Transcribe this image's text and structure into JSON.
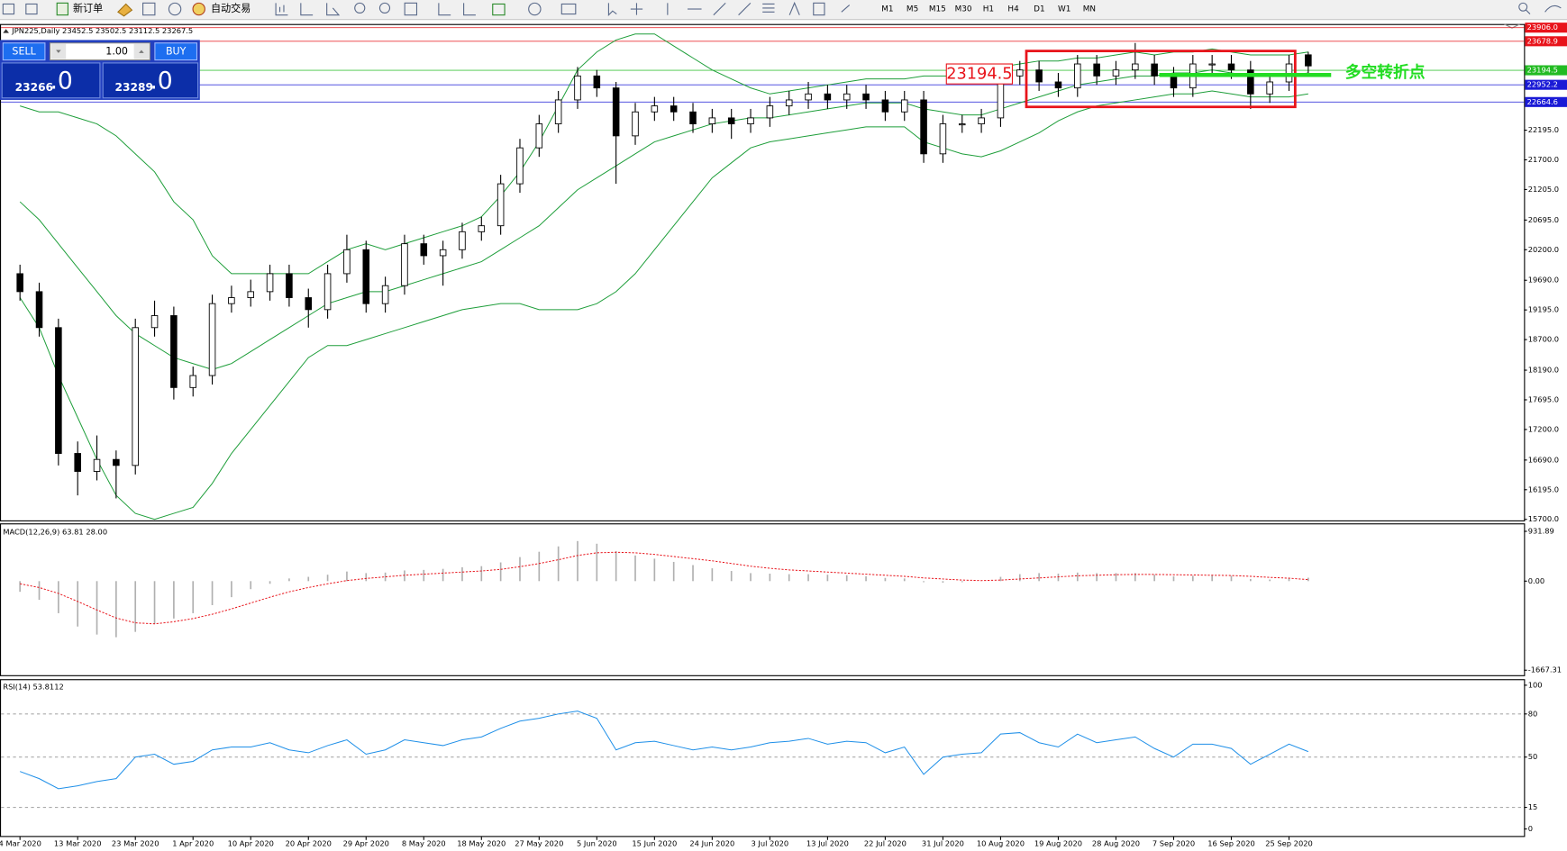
{
  "toolbar": {
    "new_order": "新订单",
    "auto_trading": "自动交易",
    "timeframes": [
      "M1",
      "M5",
      "M15",
      "M30",
      "H1",
      "H4",
      "D1",
      "W1",
      "MN"
    ]
  },
  "trade_panel": {
    "sell": "SELL",
    "lot": "1.00",
    "buy": "BUY",
    "sell_price": "23266",
    "sell_fraction": ".0",
    "buy_price": "23289",
    "buy_fraction": ".0"
  },
  "chart_data": {
    "type": "candlestick",
    "title": "JPN225,Daily  23452.5 23502.5 23112.5 23267.5",
    "dates": [
      "4 Mar 2020",
      null,
      null,
      "13 Mar 2020",
      null,
      null,
      "23 Mar 2020",
      null,
      null,
      "1 Apr 2020",
      null,
      null,
      "10 Apr 2020",
      null,
      null,
      "20 Apr 2020",
      null,
      null,
      "29 Apr 2020",
      null,
      null,
      "8 May 2020",
      null,
      null,
      "18 May 2020",
      null,
      null,
      "27 May 2020",
      null,
      null,
      "5 Jun 2020",
      null,
      null,
      "15 Jun 2020",
      null,
      null,
      "24 Jun 2020",
      null,
      null,
      "3 Jul 2020",
      null,
      null,
      "13 Jul 2020",
      null,
      null,
      "22 Jul 2020",
      null,
      null,
      "31 Jul 2020",
      null,
      null,
      "10 Aug 2020",
      null,
      null,
      "19 Aug 2020",
      null,
      null,
      "28 Aug 2020",
      null,
      null,
      "7 Sep 2020",
      null,
      null,
      "16 Sep 2020",
      null,
      null,
      "25 Sep 2020",
      null
    ],
    "ohlc": [
      [
        19800,
        19950,
        19350,
        19500
      ],
      [
        19500,
        19650,
        18750,
        18900
      ],
      [
        18900,
        19050,
        16600,
        16800
      ],
      [
        16800,
        17000,
        16100,
        16500
      ],
      [
        16500,
        17100,
        16350,
        16700
      ],
      [
        16700,
        16850,
        16050,
        16600
      ],
      [
        16600,
        19050,
        16450,
        18900
      ],
      [
        18900,
        19350,
        18750,
        19100
      ],
      [
        19100,
        19250,
        17700,
        17900
      ],
      [
        17900,
        18250,
        17750,
        18100
      ],
      [
        18100,
        19450,
        17950,
        19300
      ],
      [
        19300,
        19600,
        19150,
        19400
      ],
      [
        19400,
        19700,
        19250,
        19500
      ],
      [
        19500,
        19950,
        19350,
        19800
      ],
      [
        19800,
        19950,
        19250,
        19400
      ],
      [
        19400,
        19550,
        18900,
        19200
      ],
      [
        19200,
        19950,
        19050,
        19800
      ],
      [
        19800,
        20450,
        19650,
        20200
      ],
      [
        20200,
        20350,
        19150,
        19300
      ],
      [
        19300,
        19750,
        19150,
        19600
      ],
      [
        19600,
        20450,
        19450,
        20300
      ],
      [
        20300,
        20450,
        19950,
        20100
      ],
      [
        20100,
        20350,
        19600,
        20200
      ],
      [
        20200,
        20650,
        20050,
        20500
      ],
      [
        20500,
        20750,
        20350,
        20600
      ],
      [
        20600,
        21450,
        20450,
        21300
      ],
      [
        21300,
        22050,
        21150,
        21900
      ],
      [
        21900,
        22450,
        21750,
        22300
      ],
      [
        22300,
        22850,
        22150,
        22700
      ],
      [
        22700,
        23250,
        22550,
        23100
      ],
      [
        23100,
        23200,
        22750,
        22900
      ],
      [
        22900,
        23000,
        21300,
        22100
      ],
      [
        22100,
        22650,
        21950,
        22500
      ],
      [
        22500,
        22750,
        22350,
        22600
      ],
      [
        22600,
        22750,
        22350,
        22500
      ],
      [
        22500,
        22650,
        22150,
        22300
      ],
      [
        22300,
        22550,
        22150,
        22400
      ],
      [
        22400,
        22550,
        22050,
        22300
      ],
      [
        22300,
        22550,
        22150,
        22400
      ],
      [
        22400,
        22750,
        22250,
        22600
      ],
      [
        22600,
        22850,
        22450,
        22700
      ],
      [
        22700,
        23000,
        22550,
        22800
      ],
      [
        22800,
        22950,
        22550,
        22700
      ],
      [
        22700,
        22950,
        22550,
        22800
      ],
      [
        22800,
        22950,
        22550,
        22700
      ],
      [
        22700,
        22850,
        22350,
        22500
      ],
      [
        22500,
        22850,
        22350,
        22700
      ],
      [
        22700,
        22850,
        21650,
        21800
      ],
      [
        21800,
        22450,
        21650,
        22300
      ],
      [
        22300,
        22450,
        22150,
        22300
      ],
      [
        22300,
        22550,
        22150,
        22400
      ],
      [
        22400,
        23250,
        22250,
        23100
      ],
      [
        23100,
        23350,
        22950,
        23200
      ],
      [
        23200,
        23350,
        22850,
        23000
      ],
      [
        23000,
        23150,
        22750,
        22900
      ],
      [
        22900,
        23450,
        22750,
        23300
      ],
      [
        23300,
        23450,
        22950,
        23100
      ],
      [
        23100,
        23350,
        22950,
        23200
      ],
      [
        23200,
        23650,
        23050,
        23300
      ],
      [
        23300,
        23450,
        22950,
        23100
      ],
      [
        23100,
        23250,
        22750,
        22900
      ],
      [
        22900,
        23450,
        22750,
        23300
      ],
      [
        23300,
        23450,
        23150,
        23300
      ],
      [
        23300,
        23450,
        23050,
        23200
      ],
      [
        23200,
        23350,
        22550,
        22800
      ],
      [
        22800,
        23150,
        22650,
        23000
      ],
      [
        23000,
        23450,
        22850,
        23300
      ],
      [
        23452.5,
        23502.5,
        23112.5,
        23267.5
      ]
    ],
    "bollinger": {
      "color": "#1e9e3a",
      "upper": [
        22600,
        22500,
        22500,
        22400,
        22300,
        22100,
        21800,
        21500,
        21000,
        20700,
        20100,
        19800,
        19800,
        19800,
        19800,
        19800,
        20000,
        20200,
        20300,
        20200,
        20300,
        20400,
        20500,
        20600,
        20750,
        21100,
        21500,
        22000,
        22600,
        23200,
        23500,
        23700,
        23800,
        23800,
        23600,
        23400,
        23200,
        23050,
        22900,
        22800,
        22850,
        22900,
        22950,
        23000,
        23050,
        23050,
        23050,
        23100,
        23100,
        23100,
        23150,
        23250,
        23300,
        23350,
        23350,
        23400,
        23400,
        23450,
        23500,
        23450,
        23500,
        23500,
        23550,
        23500,
        23450,
        23450,
        23450,
        23500
      ],
      "middle": [
        21000,
        20700,
        20300,
        19900,
        19500,
        19100,
        18800,
        18600,
        18400,
        18300,
        18200,
        18300,
        18500,
        18700,
        18900,
        19100,
        19300,
        19400,
        19500,
        19500,
        19600,
        19700,
        19800,
        19900,
        20000,
        20200,
        20400,
        20600,
        20900,
        21200,
        21400,
        21600,
        21800,
        22000,
        22100,
        22200,
        22300,
        22350,
        22400,
        22400,
        22450,
        22500,
        22550,
        22600,
        22650,
        22650,
        22650,
        22550,
        22500,
        22450,
        22450,
        22550,
        22650,
        22750,
        22850,
        22950,
        23000,
        23050,
        23100,
        23100,
        23150,
        23150,
        23200,
        23150,
        23100,
        23100,
        23100,
        23150
      ],
      "lower": [
        19400,
        18900,
        18100,
        17400,
        16700,
        16100,
        15800,
        15700,
        15800,
        15900,
        16300,
        16800,
        17200,
        17600,
        18000,
        18400,
        18600,
        18600,
        18700,
        18800,
        18900,
        19000,
        19100,
        19200,
        19250,
        19300,
        19300,
        19200,
        19200,
        19200,
        19300,
        19500,
        19800,
        20200,
        20600,
        21000,
        21400,
        21650,
        21900,
        22000,
        22050,
        22100,
        22150,
        22200,
        22250,
        22250,
        22250,
        22000,
        21900,
        21800,
        21750,
        21850,
        22000,
        22150,
        22350,
        22500,
        22600,
        22650,
        22700,
        22750,
        22800,
        22800,
        22850,
        22800,
        22750,
        22750,
        22750,
        22800
      ]
    },
    "ylim": [
      15683,
      23950
    ],
    "yticks": [
      {
        "value": 15700,
        "label": "15700.0"
      },
      {
        "value": 16195,
        "label": "16195.0"
      },
      {
        "value": 16690,
        "label": "16690.0"
      },
      {
        "value": 17200,
        "label": "17200.0"
      },
      {
        "value": 17695,
        "label": "17695.0"
      },
      {
        "value": 18190,
        "label": "18190.0"
      },
      {
        "value": 18700,
        "label": "18700.0"
      },
      {
        "value": 19195,
        "label": "19195.0"
      },
      {
        "value": 19690,
        "label": "19690.0"
      },
      {
        "value": 20200,
        "label": "20200.0"
      },
      {
        "value": 20695,
        "label": "20695.0"
      },
      {
        "value": 21205,
        "label": "21205.0"
      },
      {
        "value": 21700,
        "label": "21700.0"
      },
      {
        "value": 22195,
        "label": "22195.0"
      }
    ],
    "levels": [
      {
        "value": 23906,
        "label": "23906.0",
        "color": "#e8141b"
      },
      {
        "value": 23678.9,
        "label": "23678.9",
        "color": "#e8141b"
      },
      {
        "value": 23194.5,
        "label": "23194.5",
        "color": "#22bb22"
      },
      {
        "value": 22952.2,
        "label": "22952.2",
        "color": "#1a1ad6"
      },
      {
        "value": 22664.6,
        "label": "22664.6",
        "color": "#1a1ad6"
      }
    ],
    "annotations": {
      "price_tag": "23194.5",
      "turning_point": "多空转折点"
    },
    "macd": {
      "title": "MACD(12,26,9) 63.81 28.00",
      "histogram": [
        -200,
        -350,
        -600,
        -850,
        -1000,
        -1050,
        -950,
        -800,
        -700,
        -600,
        -450,
        -300,
        -150,
        -50,
        50,
        80,
        120,
        180,
        150,
        160,
        200,
        210,
        230,
        260,
        280,
        350,
        450,
        550,
        650,
        750,
        700,
        560,
        480,
        420,
        360,
        300,
        240,
        190,
        150,
        140,
        130,
        130,
        120,
        110,
        90,
        60,
        50,
        -20,
        -30,
        -20,
        0,
        80,
        130,
        150,
        140,
        160,
        150,
        150,
        150,
        120,
        90,
        100,
        110,
        100,
        40,
        30,
        60,
        63.81
      ],
      "signal": [
        -50,
        -120,
        -230,
        -380,
        -540,
        -690,
        -780,
        -800,
        -760,
        -700,
        -620,
        -520,
        -410,
        -300,
        -200,
        -120,
        -50,
        10,
        50,
        80,
        110,
        130,
        150,
        170,
        190,
        220,
        270,
        330,
        400,
        480,
        530,
        540,
        530,
        500,
        460,
        420,
        380,
        330,
        280,
        240,
        210,
        190,
        170,
        150,
        130,
        110,
        90,
        60,
        40,
        20,
        10,
        20,
        40,
        60,
        80,
        100,
        110,
        120,
        125,
        125,
        120,
        115,
        110,
        105,
        90,
        70,
        55,
        28
      ],
      "histogram_color": "#b0b0b0",
      "signal_color": "#e8141b",
      "ylim": [
        -1779,
        1062
      ],
      "yticks": [
        {
          "value": 931.89,
          "label": "931.89"
        },
        {
          "value": 0,
          "label": "0.00"
        },
        {
          "value": -1667.31,
          "label": "-1667.31"
        }
      ]
    },
    "rsi": {
      "title": "RSI(14) 53.8112",
      "values": [
        40,
        35,
        28,
        30,
        33,
        35,
        50,
        52,
        45,
        47,
        55,
        57,
        57,
        60,
        55,
        53,
        58,
        62,
        52,
        55,
        62,
        60,
        58,
        62,
        64,
        70,
        75,
        77,
        80,
        82,
        77,
        55,
        60,
        61,
        58,
        55,
        57,
        55,
        57,
        60,
        61,
        63,
        59,
        61,
        60,
        53,
        57,
        38,
        50,
        52,
        53,
        66,
        67,
        60,
        57,
        66,
        60,
        62,
        64,
        56,
        50,
        59,
        59,
        56,
        45,
        52,
        59,
        53.8112
      ],
      "color": "#1e8fe8",
      "ylim": [
        -4.9,
        103.5
      ],
      "yticks": [
        0,
        15,
        50,
        80,
        100
      ],
      "dashed_levels": [
        15,
        50,
        80
      ]
    }
  }
}
